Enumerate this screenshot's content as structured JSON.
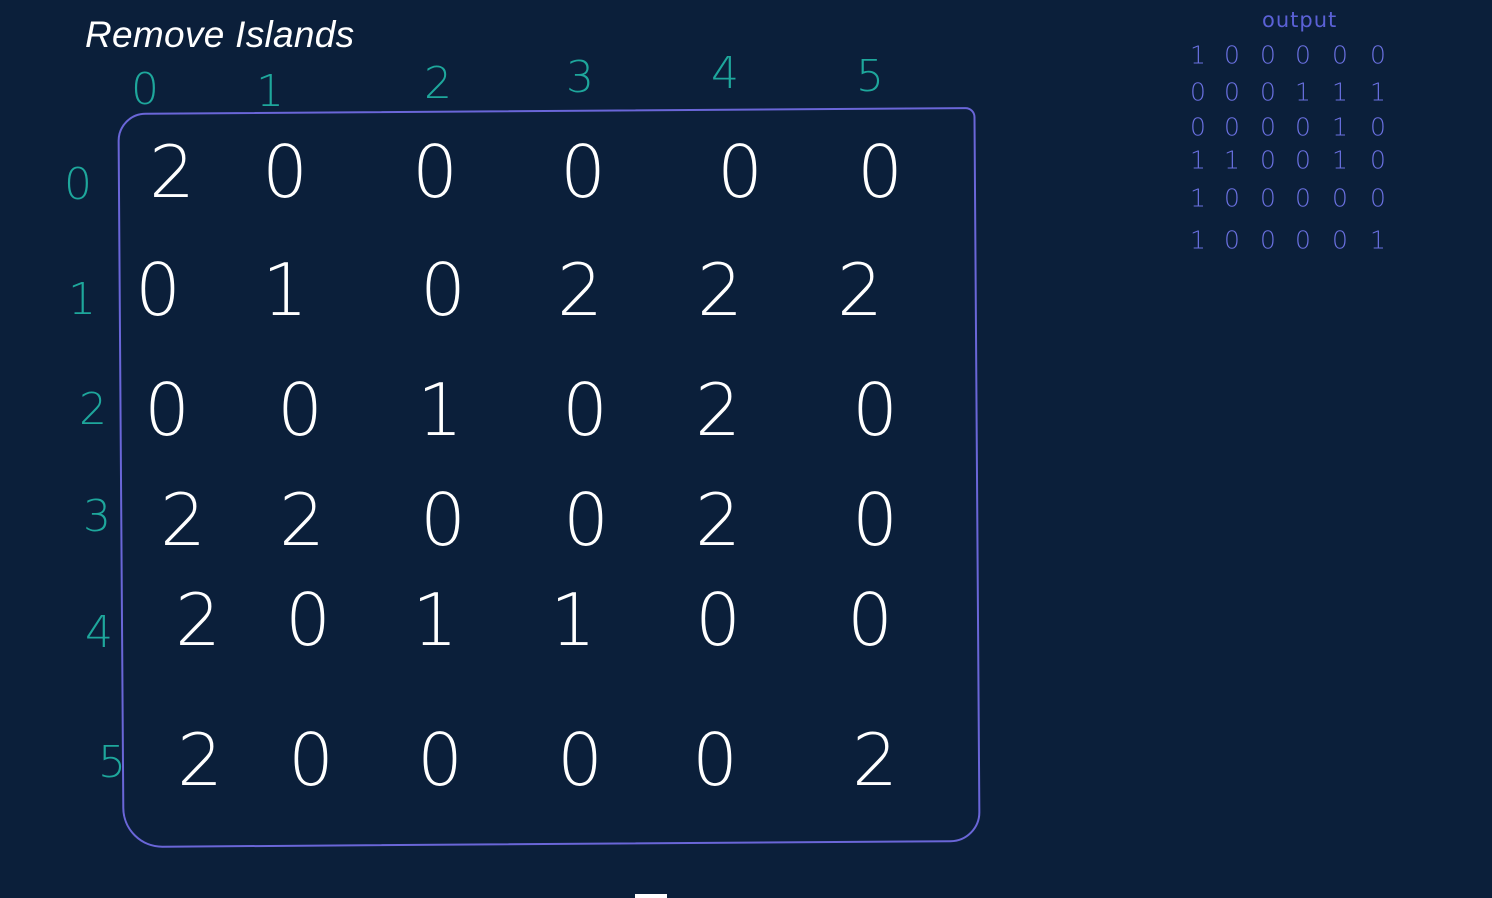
{
  "title": "Remove Islands",
  "col_indices": [
    "0",
    "1",
    "2",
    "3",
    "4",
    "5"
  ],
  "row_indices": [
    "0",
    "1",
    "2",
    "3",
    "4",
    "5"
  ],
  "grid": [
    [
      "2",
      "0",
      "0",
      "0",
      "0",
      "0"
    ],
    [
      "0",
      "1",
      "0",
      "2",
      "2",
      "2"
    ],
    [
      "0",
      "0",
      "1",
      "0",
      "2",
      "0"
    ],
    [
      "2",
      "2",
      "0",
      "0",
      "2",
      "0"
    ],
    [
      "2",
      "0",
      "1",
      "1",
      "0",
      "0"
    ],
    [
      "2",
      "0",
      "0",
      "0",
      "0",
      "2"
    ]
  ],
  "output": {
    "title": "output",
    "rows": [
      [
        "1",
        "0",
        "0",
        "0",
        "0",
        "0"
      ],
      [
        "0",
        "0",
        "0",
        "1",
        "1",
        "1"
      ],
      [
        "0",
        "0",
        "0",
        "0",
        "1",
        "0"
      ],
      [
        "1",
        "1",
        "0",
        "0",
        "1",
        "0"
      ],
      [
        "1",
        "0",
        "0",
        "0",
        "0",
        "0"
      ],
      [
        "1",
        "0",
        "0",
        "0",
        "0",
        "1"
      ]
    ]
  },
  "colors": {
    "background": "#0b1f3a",
    "grid_values": "#ffffff",
    "indices": "#1ea79c",
    "border": "#6a66d8",
    "output": "#6a70e0"
  }
}
